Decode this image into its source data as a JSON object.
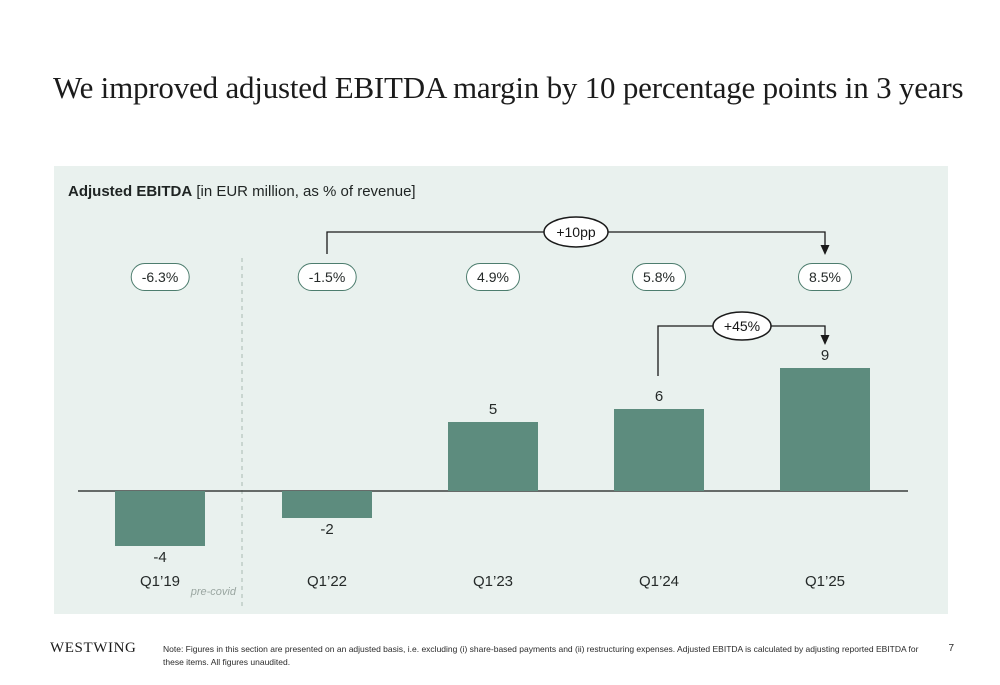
{
  "slide": {
    "title": "We improved adjusted EBITDA margin by 10 percentage points in 3 years"
  },
  "chart_header": {
    "title_bold": "Adjusted EBITDA",
    "title_rest": " [in EUR million, as % of revenue]"
  },
  "chart_data": {
    "type": "bar",
    "title": "Adjusted EBITDA [in EUR million, as % of revenue]",
    "categories": [
      "Q1’19",
      "Q1’22",
      "Q1’23",
      "Q1’24",
      "Q1’25"
    ],
    "values": [
      -4,
      -2,
      5,
      6,
      9
    ],
    "value_labels": [
      "-4",
      "-2",
      "5",
      "6",
      "9"
    ],
    "margin_labels": [
      "-6.3%",
      "-1.5%",
      "4.9%",
      "5.8%",
      "8.5%"
    ],
    "annotations": [
      {
        "label": "+10pp",
        "from": "Q1’22",
        "to": "Q1’25"
      },
      {
        "label": "+45%",
        "from": "Q1’24",
        "to": "Q1’25"
      }
    ],
    "separator_label": "pre-covid",
    "unit": "EUR million",
    "ylim": [
      -5,
      10
    ],
    "grid": false,
    "legend": "none",
    "bar_color": "#5d8c7e",
    "panel_bg": "#e9f1ee",
    "bubble_border_color": "#4d7d6e"
  },
  "footer": {
    "logo": "WESTWING",
    "note": "Note: Figures in this section are presented on an adjusted basis, i.e. excluding (i) share-based payments and (ii) restructuring expenses. Adjusted EBITDA is calculated by adjusting reported EBITDA for these items. All figures unaudited.",
    "page": "7"
  }
}
